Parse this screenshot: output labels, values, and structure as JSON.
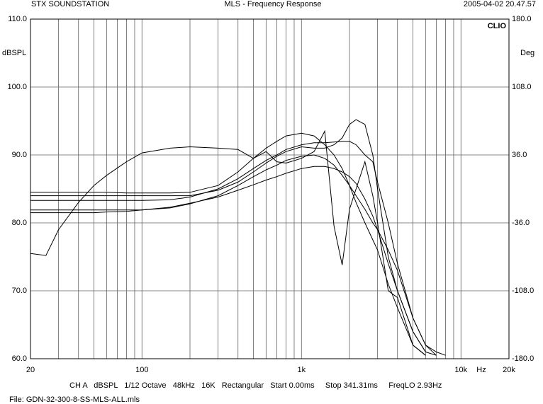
{
  "chart_data": {
    "type": "line",
    "title": "MLS - Frequency Response",
    "source": "STX SOUNDSTATION",
    "date": "2005-04-02 20.47.57",
    "brand": "CLIO",
    "ylabel": "dBSPL",
    "y2label": "Deg",
    "xunit": "Hz",
    "settings": "CH A   dBSPL   1/12 Octave   48kHz   16K   Rectangular   Start 0.00ms     Stop 341.31ms     FreqLO 2.93Hz",
    "file": "File: GDN-32-300-8-SS-MLS-ALL.mls",
    "xscale": "log",
    "grid": true,
    "xlim": [
      20,
      20000
    ],
    "ylim": [
      60,
      110
    ],
    "y2lim": [
      -180,
      180
    ],
    "xticks": [
      20,
      100,
      {
        "value": 1000,
        "label": "1k"
      },
      {
        "value": 10000,
        "label": "10k"
      },
      {
        "value": 20000,
        "label": "20k"
      }
    ],
    "xminor": [
      30,
      40,
      50,
      60,
      70,
      80,
      90,
      200,
      300,
      400,
      500,
      600,
      700,
      800,
      900,
      2000,
      3000,
      4000,
      5000,
      6000,
      7000,
      8000,
      9000
    ],
    "yticks": [
      {
        "value": 60,
        "label": "60.0"
      },
      {
        "value": 70,
        "label": "70.0"
      },
      {
        "value": 80,
        "label": "80.0"
      },
      {
        "value": 90,
        "label": "90.0"
      },
      {
        "value": 100,
        "label": "100.0"
      },
      {
        "value": 110,
        "label": "110.0"
      }
    ],
    "y2ticks": [
      {
        "value": -180,
        "label": "-180.0"
      },
      {
        "value": -108,
        "label": "-108.0"
      },
      {
        "value": -36,
        "label": "-36.0"
      },
      {
        "value": 36,
        "label": "36.0"
      },
      {
        "value": 108,
        "label": "108.0"
      },
      {
        "value": 180,
        "label": "180.0"
      }
    ],
    "x": [
      20,
      25,
      30,
      40,
      50,
      60,
      80,
      100,
      150,
      200,
      300,
      400,
      500,
      600,
      700,
      800,
      1000,
      1200,
      1400,
      1600,
      1800,
      2000,
      2200,
      2500,
      2800,
      3000,
      3500,
      4000,
      5000,
      6000,
      7000,
      8000
    ],
    "series": [
      {
        "color": "#000000",
        "values": [
          75.5,
          75.2,
          79,
          83,
          85.5,
          87,
          89,
          90.3,
          91,
          91.2,
          91,
          90.8,
          89.5,
          90.5,
          89,
          88.8,
          89.5,
          90.5,
          93.5,
          79.5,
          73.8,
          82,
          85,
          89,
          84,
          80,
          70,
          69,
          62,
          60.5,
          null,
          null
        ]
      },
      {
        "color": "#000000",
        "values": [
          84.5,
          84.5,
          84.5,
          84.5,
          84.5,
          84.5,
          84.4,
          84.4,
          84.4,
          84.5,
          85.5,
          87.5,
          89.5,
          91,
          92,
          92.8,
          93.2,
          92.8,
          91.5,
          90,
          88,
          85.5,
          83,
          80,
          77.5,
          76,
          71,
          67.5,
          62,
          60.5,
          null,
          null
        ]
      },
      {
        "color": "#000000",
        "values": [
          84,
          84,
          84,
          84,
          84,
          84,
          84,
          84,
          84,
          84,
          84.8,
          86,
          87.5,
          88.8,
          89.8,
          90.5,
          91.2,
          91,
          91,
          91.5,
          92.5,
          94.5,
          95.2,
          94.5,
          90,
          85,
          75,
          70,
          64,
          61,
          60.5,
          null
        ]
      },
      {
        "color": "#000000",
        "values": [
          83.3,
          83.3,
          83.3,
          83.3,
          83.3,
          83.3,
          83.3,
          83.3,
          83.4,
          83.8,
          85,
          86.5,
          88,
          89.2,
          90,
          90.8,
          91.5,
          91.8,
          91.8,
          91.9,
          92,
          92,
          91.5,
          90,
          89,
          86,
          80,
          74,
          66,
          62,
          61,
          60.5
        ]
      },
      {
        "color": "#000000",
        "values": [
          81.9,
          81.9,
          81.9,
          81.9,
          81.9,
          81.9,
          81.9,
          81.9,
          82.2,
          82.8,
          84,
          85.5,
          86.8,
          87.8,
          88.5,
          89.2,
          89.8,
          90,
          89.5,
          88.5,
          87,
          85.5,
          84,
          82,
          80,
          79,
          76,
          73,
          66,
          62,
          60.5,
          null
        ]
      },
      {
        "color": "#000000",
        "values": [
          81.5,
          81.5,
          81.5,
          81.5,
          81.5,
          81.6,
          81.7,
          81.9,
          82.3,
          82.9,
          83.8,
          84.8,
          85.6,
          86.3,
          86.8,
          87.3,
          88,
          88.3,
          88.3,
          88,
          87.5,
          86.8,
          85.8,
          83.5,
          81,
          79,
          74,
          70,
          64,
          61,
          null,
          null
        ]
      }
    ]
  }
}
